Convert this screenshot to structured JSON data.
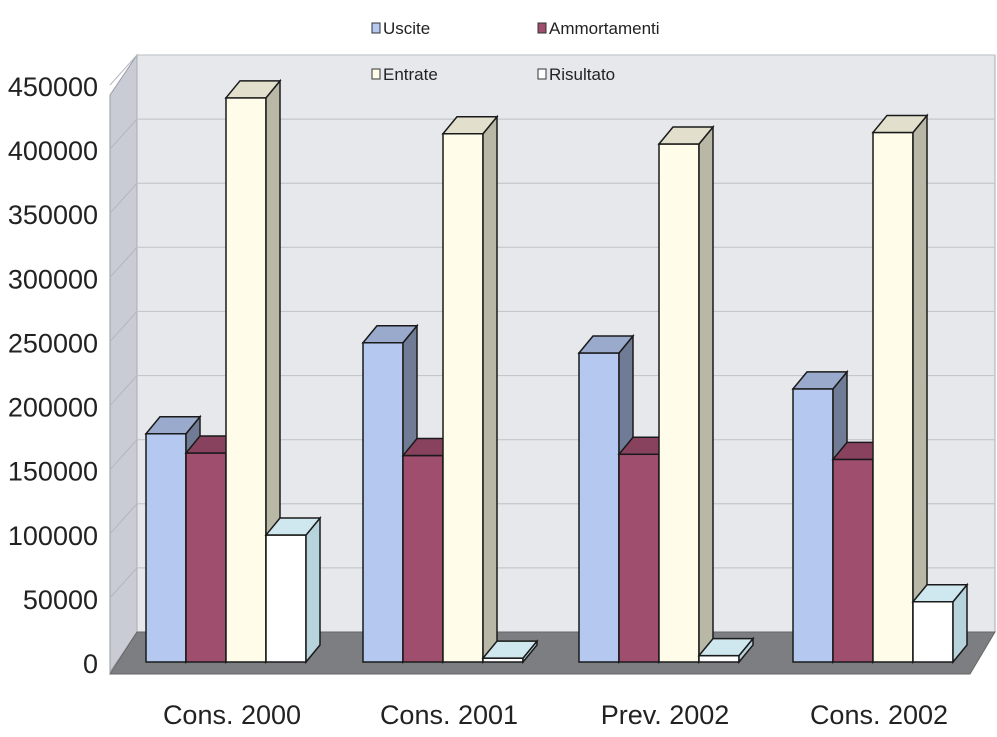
{
  "chart_data": {
    "type": "bar",
    "categories": [
      "Cons. 2000",
      "Cons. 2001",
      "Prev. 2002",
      "Cons. 2002"
    ],
    "series": [
      {
        "name": "Uscite",
        "values": [
          178000,
          249000,
          241000,
          213000
        ],
        "color": "#b4c8f0"
      },
      {
        "name": "Ammortamenti",
        "values": [
          163000,
          161000,
          162000,
          158000
        ],
        "color": "#a04e6e"
      },
      {
        "name": "Entrate",
        "values": [
          440000,
          412000,
          404000,
          413000
        ],
        "color": "#fffde9"
      },
      {
        "name": "Risultato",
        "values": [
          99000,
          -2000,
          5000,
          47000
        ],
        "color": "#ffffff"
      }
    ],
    "ylim": [
      0,
      450000
    ],
    "yticks": [
      "0",
      "50000",
      "100000",
      "150000",
      "200000",
      "250000",
      "300000",
      "350000",
      "400000",
      "450000"
    ],
    "grid": true,
    "legend_position": "top",
    "title": "",
    "xlabel": "",
    "ylabel": ""
  }
}
